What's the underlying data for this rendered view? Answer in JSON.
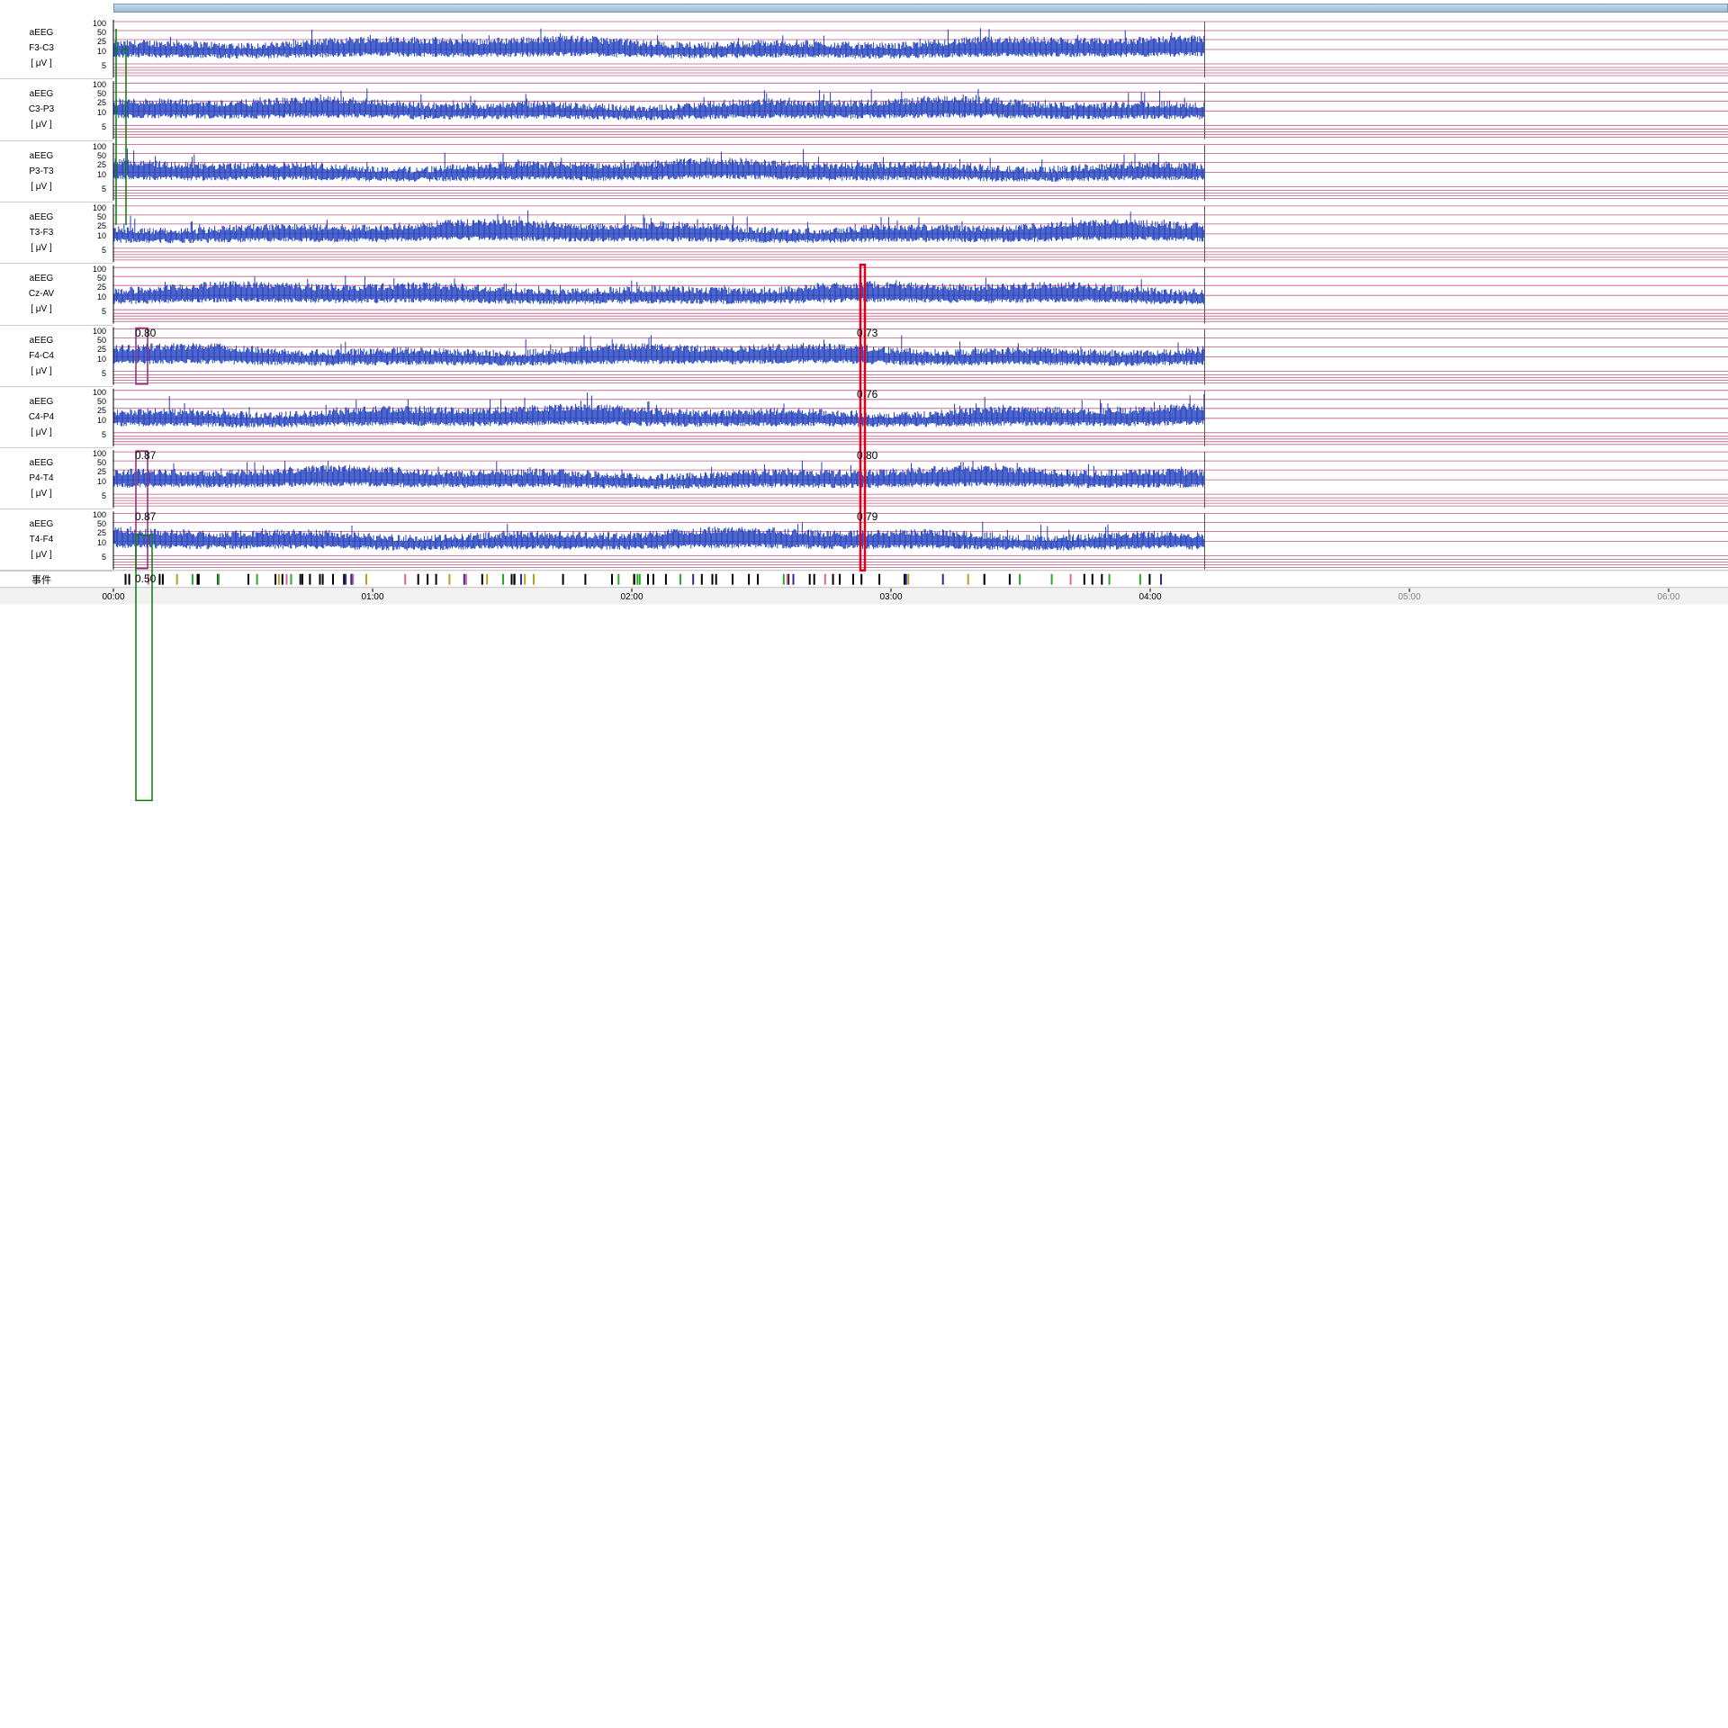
{
  "channels": [
    {
      "type": "aEEG",
      "name": "F3-C3",
      "unit": "[ μV ]"
    },
    {
      "type": "aEEG",
      "name": "C3-P3",
      "unit": "[ μV ]"
    },
    {
      "type": "aEEG",
      "name": "P3-T3",
      "unit": "[ μV ]"
    },
    {
      "type": "aEEG",
      "name": "T3-F3",
      "unit": "[ μV ]"
    },
    {
      "type": "aEEG",
      "name": "Cz-AV",
      "unit": "[ μV ]"
    },
    {
      "type": "aEEG",
      "name": "F4-C4",
      "unit": "[ μV ]"
    },
    {
      "type": "aEEG",
      "name": "C4-P4",
      "unit": "[ μV ]"
    },
    {
      "type": "aEEG",
      "name": "P4-T4",
      "unit": "[ μV ]"
    },
    {
      "type": "aEEG",
      "name": "T4-F4",
      "unit": "[ μV ]"
    }
  ],
  "scale_ticks": [
    "100",
    "50",
    "25",
    "10",
    "5"
  ],
  "events_label": "事件",
  "time_axis": [
    "00:00",
    "01:00",
    "02:00",
    "03:00",
    "04:00",
    "05:00",
    "06:00"
  ],
  "recording_end_hours": 4.21,
  "annotations": {
    "left": [
      {
        "channel": 5,
        "text": "0.80"
      },
      {
        "channel": 7,
        "text": "0.87"
      },
      {
        "channel": 8,
        "text": "0.87"
      }
    ],
    "left_events": "0.50",
    "right": [
      {
        "channel": 5,
        "text": "0.73"
      },
      {
        "channel": 6,
        "text": "0.76"
      },
      {
        "channel": 7,
        "text": "0.80"
      },
      {
        "channel": 8,
        "text": "0.79"
      }
    ]
  },
  "colors": {
    "trace": "#1f3fbf",
    "grid_lines": "#b03a6e",
    "red_marker": "#e0001a",
    "purple_marker": "#8a2a7a",
    "green_marker": "#0a7a0a"
  }
}
